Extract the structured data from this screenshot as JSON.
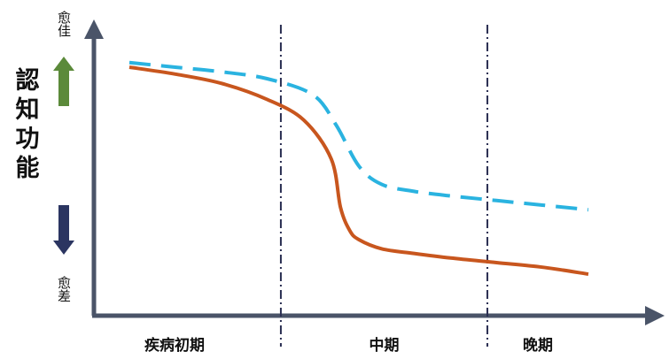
{
  "chart_data": {
    "type": "line",
    "title": "",
    "xlabel": "",
    "ylabel": "認知功能",
    "y_top_label": "愈佳",
    "y_bottom_label": "愈差",
    "x_ticks": [
      "疾病初期",
      "中期",
      "晚期"
    ],
    "xlim": [
      0,
      100
    ],
    "ylim": [
      0,
      100
    ],
    "phase_boundaries": [
      33,
      78
    ],
    "grid": false,
    "legend": "none",
    "series": [
      {
        "color": "#C8561E",
        "style": "solid",
        "x": [
          0,
          10,
          20,
          30,
          38,
          44,
          46,
          48,
          50,
          55,
          62,
          70,
          80,
          90,
          100
        ],
        "y": [
          95,
          92,
          88,
          81,
          72,
          55,
          34,
          24,
          20,
          16,
          14,
          12,
          10,
          8,
          5
        ]
      },
      {
        "color": "#2AB3E0",
        "style": "dashed",
        "x": [
          0,
          10,
          20,
          30,
          40,
          45,
          50,
          55,
          62,
          70,
          80,
          90,
          100
        ],
        "y": [
          97,
          95,
          93,
          90,
          83,
          70,
          52,
          44,
          41,
          39,
          37,
          35,
          33
        ]
      }
    ],
    "arrow_colors": {
      "up": "#5B8A3A",
      "down": "#2B3561"
    },
    "axis_color": "#4A5468",
    "boundary_color": "#2A2E52"
  }
}
